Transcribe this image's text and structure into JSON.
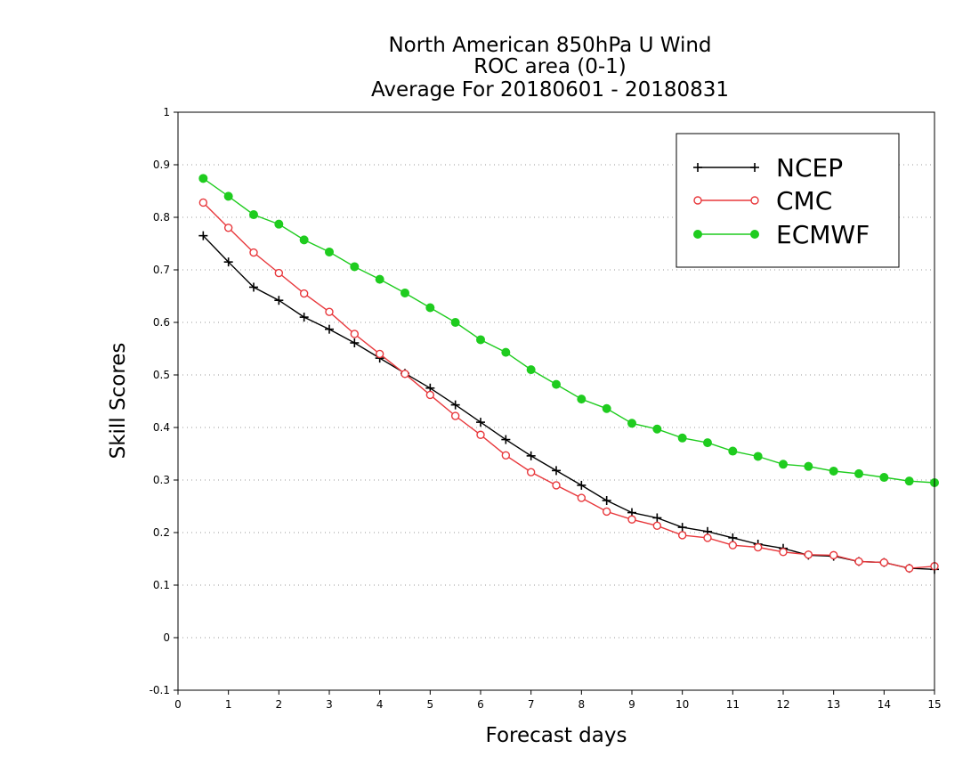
{
  "chart_data": {
    "type": "line",
    "title": [
      "North American 850hPa U Wind",
      "ROC area (0-1)",
      "Average For 20180601 - 20180831"
    ],
    "xlabel": "Forecast days",
    "ylabel": "Skill Scores",
    "xlim": [
      0,
      15
    ],
    "ylim": [
      -0.1,
      1
    ],
    "xticks": [
      "0",
      "1",
      "2",
      "3",
      "4",
      "5",
      "6",
      "7",
      "8",
      "9",
      "10",
      "11",
      "12",
      "13",
      "14",
      "15"
    ],
    "yticks": [
      "-0.1",
      "0",
      "0.1",
      "0.2",
      "0.3",
      "0.4",
      "0.5",
      "0.6",
      "0.7",
      "0.8",
      "0.9",
      "1"
    ],
    "grid": "horizontal dotted",
    "legend_position": "top-right",
    "x": [
      0.5,
      1,
      1.5,
      2,
      2.5,
      3,
      3.5,
      4,
      4.5,
      5,
      5.5,
      6,
      6.5,
      7,
      7.5,
      8,
      8.5,
      9,
      9.5,
      10,
      10.5,
      11,
      11.5,
      12,
      12.5,
      13,
      13.5,
      14,
      14.5,
      15
    ],
    "series": [
      {
        "name": "NCEP",
        "color": "#000000",
        "marker": "plus",
        "values": [
          0.765,
          0.715,
          0.667,
          0.642,
          0.61,
          0.587,
          0.561,
          0.532,
          0.503,
          0.475,
          0.443,
          0.41,
          0.377,
          0.346,
          0.318,
          0.29,
          0.261,
          0.238,
          0.228,
          0.21,
          0.202,
          0.19,
          0.178,
          0.17,
          0.157,
          0.155,
          0.145,
          0.143,
          0.132,
          0.13
        ]
      },
      {
        "name": "CMC",
        "color": "#e8383c",
        "marker": "open-circle",
        "values": [
          0.828,
          0.78,
          0.733,
          0.694,
          0.655,
          0.62,
          0.578,
          0.54,
          0.502,
          0.462,
          0.422,
          0.386,
          0.347,
          0.315,
          0.29,
          0.266,
          0.24,
          0.225,
          0.213,
          0.195,
          0.19,
          0.176,
          0.172,
          0.163,
          0.158,
          0.157,
          0.145,
          0.143,
          0.132,
          0.136
        ]
      },
      {
        "name": "ECMWF",
        "color": "#1fcc1f",
        "marker": "filled-circle",
        "values": [
          0.874,
          0.84,
          0.805,
          0.787,
          0.757,
          0.734,
          0.706,
          0.682,
          0.656,
          0.628,
          0.6,
          0.567,
          0.543,
          0.51,
          0.482,
          0.454,
          0.436,
          0.408,
          0.397,
          0.38,
          0.371,
          0.355,
          0.345,
          0.33,
          0.326,
          0.317,
          0.312,
          0.305,
          0.298,
          0.295
        ]
      }
    ]
  }
}
